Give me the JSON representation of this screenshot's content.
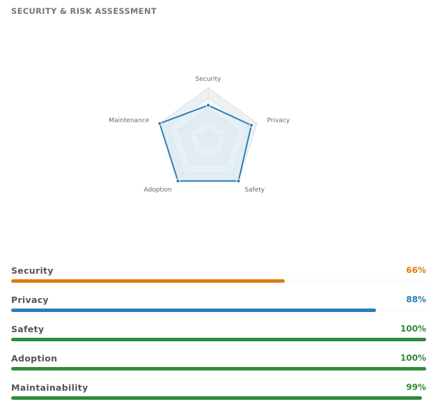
{
  "panel": {
    "title": "SECURITY & RISK ASSESSMENT"
  },
  "colors": {
    "radar_line": "#2b7fb8",
    "radar_fill": "#d8e9f3",
    "grid": "#d9dde2",
    "grid_band": "#eef1f4",
    "orange": "#e07b10",
    "blue": "#2b7fb8",
    "green": "#2e8b3a"
  },
  "chart_data": {
    "type": "radar",
    "axes": [
      "Security",
      "Privacy",
      "Safety",
      "Adoption",
      "Maintenance"
    ],
    "values": [
      66,
      88,
      100,
      100,
      99
    ],
    "range": [
      0,
      100
    ],
    "grid_rings": 5
  },
  "metrics": [
    {
      "label": "Security",
      "value": 66,
      "display": "66%",
      "color": "#e07b10"
    },
    {
      "label": "Privacy",
      "value": 88,
      "display": "88%",
      "color": "#2b7fb8"
    },
    {
      "label": "Safety",
      "value": 100,
      "display": "100%",
      "color": "#2e8b3a"
    },
    {
      "label": "Adoption",
      "value": 100,
      "display": "100%",
      "color": "#2e8b3a"
    },
    {
      "label": "Maintainability",
      "value": 99,
      "display": "99%",
      "color": "#2e8b3a"
    }
  ]
}
